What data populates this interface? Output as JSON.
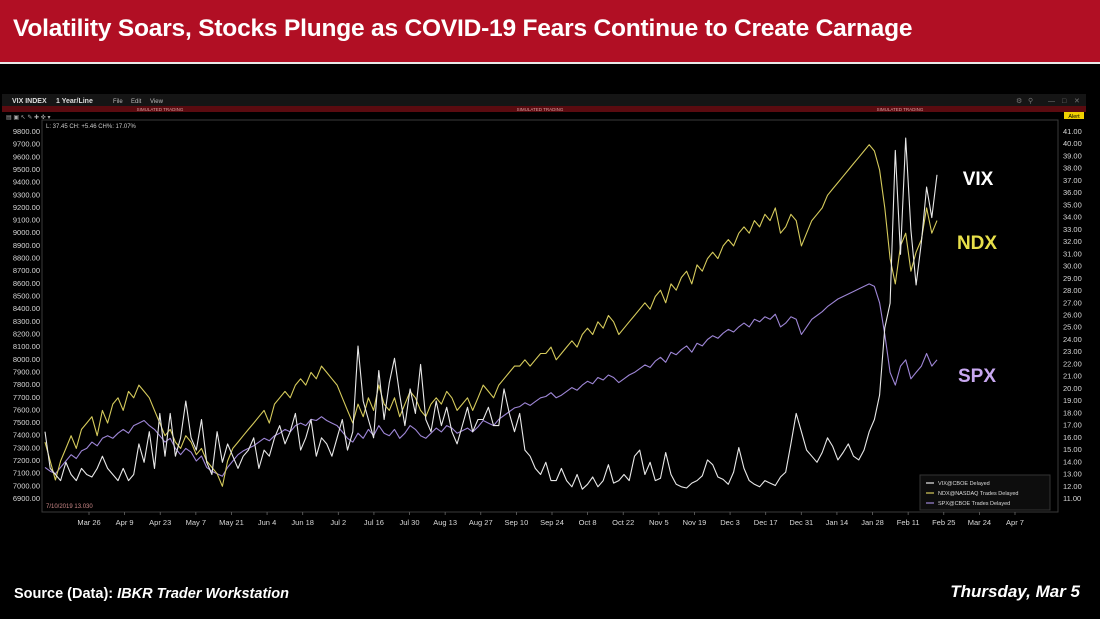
{
  "header": {
    "title": "Volatility Soars, Stocks Plunge as COVID-19 Fears Continue to Create Carnage"
  },
  "toolbar": {
    "symbol": "VIX INDEX",
    "period": "1 Year/Line",
    "menu": [
      "File",
      "Edit",
      "View"
    ],
    "banner": "SIMULATED TRADING",
    "readout": "L: 37.45  CH: +5.46  CH%: 17.07%",
    "alert": "Alert",
    "start_label": "7/10/2019   13.030"
  },
  "chart_data": {
    "type": "line",
    "title": "",
    "left_axis": {
      "min": 6900,
      "max": 9800,
      "ticks": [
        "6900.00",
        "7000.00",
        "7100.00",
        "7200.00",
        "7300.00",
        "7400.00",
        "7500.00",
        "7600.00",
        "7700.00",
        "7800.00",
        "7900.00",
        "8000.00",
        "8100.00",
        "8200.00",
        "8300.00",
        "8400.00",
        "8500.00",
        "8600.00",
        "8700.00",
        "8800.00",
        "8900.00",
        "9000.00",
        "9100.00",
        "9200.00",
        "9300.00",
        "9400.00",
        "9500.00",
        "9600.00",
        "9700.00",
        "9800.00"
      ]
    },
    "right_axis": {
      "min": 11,
      "max": 41,
      "ticks": [
        "11.00",
        "12.00",
        "13.00",
        "14.00",
        "15.00",
        "16.00",
        "17.00",
        "18.00",
        "19.00",
        "20.00",
        "21.00",
        "22.00",
        "23.00",
        "24.00",
        "25.00",
        "26.00",
        "27.00",
        "28.00",
        "29.00",
        "30.00",
        "31.00",
        "32.00",
        "33.00",
        "34.00",
        "35.00",
        "36.00",
        "37.00",
        "38.00",
        "39.00",
        "40.00",
        "41.00"
      ]
    },
    "x_ticks": [
      "Mar 26",
      "Apr 9",
      "Apr 23",
      "May 7",
      "May 21",
      "Jun 4",
      "Jun 18",
      "Jul 2",
      "Jul 16",
      "Jul 30",
      "Aug 13",
      "Aug 27",
      "Sep 10",
      "Sep 24",
      "Oct 8",
      "Oct 22",
      "Nov 5",
      "Nov 19",
      "Dec 3",
      "Dec 17",
      "Dec 31",
      "Jan 14",
      "Jan 28",
      "Feb 11",
      "Feb 25",
      "Mar 24",
      "Apr 7"
    ],
    "series": [
      {
        "name": "VIX",
        "label": "VIX",
        "color": "#e8e8e8",
        "legend": "VIX@CBOE Delayed",
        "axis": "right",
        "values": [
          16.5,
          13.5,
          13.0,
          12.5,
          14.0,
          13.0,
          12.5,
          13.5,
          13.0,
          12.8,
          13.5,
          14.5,
          13.5,
          13.0,
          12.5,
          13.5,
          12.5,
          13.0,
          15.5,
          14.0,
          16.5,
          13.5,
          18.0,
          14.5,
          18.0,
          14.5,
          16.0,
          19.0,
          16.0,
          15.0,
          17.5,
          14.0,
          13.0,
          16.5,
          14.0,
          15.5,
          14.5,
          13.5,
          14.5,
          15.0,
          16.0,
          13.5,
          15.0,
          14.5,
          16.0,
          17.0,
          15.5,
          16.5,
          18.0,
          15.0,
          16.0,
          17.5,
          14.5,
          16.0,
          15.5,
          14.5,
          16.0,
          17.5,
          15.0,
          16.5,
          23.5,
          19.0,
          17.5,
          16.0,
          21.5,
          17.5,
          20.5,
          22.5,
          19.5,
          17.0,
          20.0,
          18.0,
          22.0,
          17.5,
          16.5,
          19.0,
          17.0,
          18.5,
          16.5,
          15.5,
          17.0,
          18.5,
          16.5,
          17.5,
          17.5,
          18.5,
          17.0,
          17.0,
          20.0,
          18.0,
          16.5,
          18.0,
          15.0,
          14.5,
          13.5,
          13.0,
          14.0,
          12.5,
          12.5,
          13.5,
          12.5,
          12.0,
          13.0,
          11.8,
          12.2,
          12.8,
          12.0,
          12.5,
          13.8,
          12.3,
          12.5,
          13.0,
          12.5,
          14.5,
          15.0,
          13.0,
          14.0,
          12.5,
          12.7,
          14.8,
          13.0,
          12.2,
          12.0,
          11.9,
          12.3,
          12.5,
          12.9,
          14.2,
          13.8,
          12.8,
          12.6,
          12.2,
          13.2,
          15.2,
          13.5,
          12.5,
          12.2,
          12.0,
          12.5,
          12.3,
          12.1,
          12.8,
          13.2,
          15.5,
          18.0,
          16.5,
          15.0,
          14.5,
          14.0,
          14.8,
          16.0,
          15.3,
          14.2,
          14.8,
          15.5,
          14.5,
          14.2,
          15.0,
          16.5,
          17.5,
          19.5,
          25.0,
          27.0,
          39.5,
          31.0,
          40.5,
          33.0,
          28.5,
          32.0,
          36.5,
          34.0,
          37.5
        ]
      },
      {
        "name": "NDX",
        "label": "NDX",
        "color": "#d6cb5c",
        "legend": "NDX@NASDAQ Trades Delayed",
        "axis": "left",
        "values": [
          7350,
          7200,
          7050,
          7200,
          7300,
          7400,
          7300,
          7450,
          7500,
          7550,
          7400,
          7600,
          7500,
          7650,
          7700,
          7600,
          7750,
          7700,
          7800,
          7750,
          7700,
          7600,
          7500,
          7400,
          7450,
          7350,
          7300,
          7400,
          7350,
          7250,
          7300,
          7200,
          7150,
          7100,
          7000,
          7200,
          7300,
          7350,
          7400,
          7450,
          7500,
          7550,
          7600,
          7500,
          7650,
          7700,
          7750,
          7700,
          7800,
          7850,
          7800,
          7900,
          7850,
          7950,
          7900,
          7850,
          7800,
          7700,
          7600,
          7500,
          7650,
          7550,
          7700,
          7600,
          7800,
          7650,
          7600,
          7700,
          7550,
          7650,
          7750,
          7700,
          7600,
          7550,
          7650,
          7700,
          7650,
          7750,
          7700,
          7600,
          7650,
          7700,
          7600,
          7700,
          7800,
          7750,
          7700,
          7800,
          7850,
          7900,
          7950,
          7950,
          8000,
          7950,
          8000,
          8050,
          8050,
          8100,
          8000,
          8050,
          8100,
          8150,
          8100,
          8200,
          8250,
          8200,
          8300,
          8250,
          8350,
          8300,
          8200,
          8250,
          8300,
          8350,
          8400,
          8450,
          8400,
          8500,
          8550,
          8450,
          8600,
          8550,
          8650,
          8700,
          8600,
          8750,
          8700,
          8800,
          8850,
          8800,
          8900,
          8950,
          8900,
          9000,
          9050,
          9000,
          9100,
          9050,
          9150,
          9100,
          9200,
          9000,
          9050,
          9150,
          9100,
          8900,
          9000,
          9100,
          9150,
          9200,
          9300,
          9350,
          9400,
          9450,
          9500,
          9550,
          9600,
          9650,
          9700,
          9650,
          9500,
          9200,
          8800,
          8600,
          8900,
          9000,
          8700,
          8850,
          8950,
          9200,
          9000,
          9100
        ]
      },
      {
        "name": "SPX",
        "label": "SPX",
        "color": "#9e86d6",
        "legend": "SPX@CBOE Trades Delayed",
        "axis": "left",
        "values": [
          7150,
          7120,
          7100,
          7150,
          7200,
          7250,
          7220,
          7280,
          7300,
          7350,
          7320,
          7380,
          7400,
          7380,
          7420,
          7450,
          7420,
          7480,
          7500,
          7520,
          7480,
          7450,
          7400,
          7350,
          7380,
          7300,
          7250,
          7300,
          7270,
          7200,
          7240,
          7150,
          7120,
          7100,
          7080,
          7150,
          7200,
          7250,
          7280,
          7300,
          7320,
          7350,
          7380,
          7360,
          7400,
          7420,
          7450,
          7430,
          7480,
          7500,
          7480,
          7530,
          7520,
          7550,
          7520,
          7500,
          7480,
          7430,
          7380,
          7350,
          7420,
          7380,
          7450,
          7400,
          7480,
          7420,
          7400,
          7450,
          7380,
          7420,
          7480,
          7450,
          7400,
          7380,
          7420,
          7460,
          7430,
          7480,
          7460,
          7420,
          7440,
          7460,
          7430,
          7470,
          7520,
          7500,
          7480,
          7530,
          7560,
          7590,
          7620,
          7630,
          7660,
          7640,
          7670,
          7700,
          7710,
          7740,
          7700,
          7720,
          7750,
          7780,
          7760,
          7800,
          7830,
          7810,
          7860,
          7840,
          7880,
          7860,
          7820,
          7850,
          7880,
          7900,
          7930,
          7960,
          7940,
          7990,
          8020,
          7980,
          8060,
          8040,
          8080,
          8110,
          8060,
          8130,
          8110,
          8160,
          8190,
          8170,
          8210,
          8240,
          8220,
          8260,
          8290,
          8260,
          8320,
          8300,
          8340,
          8320,
          8360,
          8260,
          8290,
          8340,
          8320,
          8200,
          8260,
          8320,
          8350,
          8380,
          8420,
          8450,
          8480,
          8500,
          8520,
          8540,
          8560,
          8580,
          8600,
          8580,
          8450,
          8200,
          7900,
          7800,
          7950,
          8000,
          7850,
          7900,
          7950,
          8050,
          7950,
          8000
        ]
      }
    ],
    "grid": false,
    "legend": "bottom-right"
  },
  "footer": {
    "source_label": "Source (Data): ",
    "source_value": "IBKR Trader Workstation",
    "date": "Thursday, Mar 5"
  }
}
